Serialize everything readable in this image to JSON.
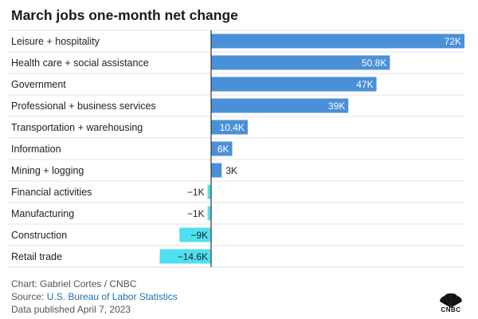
{
  "chart_data": {
    "type": "bar",
    "orientation": "horizontal",
    "title": "March jobs one-month net change",
    "categories": [
      "Leisure + hospitality",
      "Health care + social assistance",
      "Government",
      "Professional + business services",
      "Transportation + warehousing",
      "Information",
      "Mining + logging",
      "Financial activities",
      "Manufacturing",
      "Construction",
      "Retail trade"
    ],
    "values": [
      72,
      50.8,
      47,
      39,
      10.4,
      6,
      3,
      -1,
      -1,
      -9,
      -14.6
    ],
    "labels": [
      "72K",
      "50.8K",
      "47K",
      "39K",
      "10.4K",
      "6K",
      "3K",
      "−1K",
      "−1K",
      "−9K",
      "−14.6K"
    ],
    "units": "thousands of jobs",
    "xlim": [
      -14.6,
      72
    ],
    "colors": {
      "positive": "#4a90d9",
      "negative": "#4fe0f0"
    }
  },
  "footer": {
    "credit": "Chart: Gabriel Cortes / CNBC",
    "source_prefix": "Source: ",
    "source_link": "U.S. Bureau of Labor Statistics",
    "published": "Data published April 7, 2023"
  },
  "brand": {
    "logo_text": "CNBC"
  }
}
